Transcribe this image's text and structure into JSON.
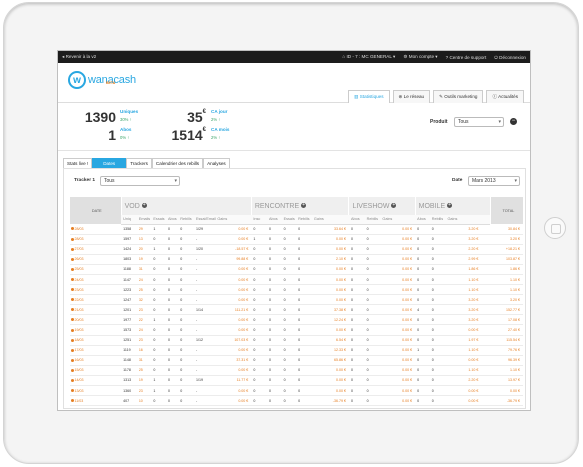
{
  "topbar": {
    "back": "Revenir à la v2",
    "user": "ID - 7 : MC GENERAL",
    "account": "Mon compte",
    "support": "Centre de support",
    "logout": "Déconnexion"
  },
  "brand": {
    "name": "wanacash",
    "badge": "BETA"
  },
  "nav": [
    "Statistiques",
    "Le réseau",
    "Outils marketing",
    "Actualités"
  ],
  "stats": {
    "uniques_value": "1390",
    "uniques_label": "Uniques",
    "uniques_pct": "30%",
    "abos_value": "1",
    "abos_label": "Abos",
    "abos_pct": "0%",
    "ca_jour_value": "35",
    "ca_jour_label": "CA jour",
    "ca_jour_pct": "2%",
    "ca_mois_value": "1514",
    "ca_mois_label": "CA mois",
    "ca_mois_pct": "2%",
    "currency": "€"
  },
  "produit": {
    "label": "Produit",
    "value": "Tous"
  },
  "subtabs": [
    "Stats live !",
    "Dates",
    "Trackers",
    "Calendrier des rebills",
    "Analyses"
  ],
  "filters": {
    "tracker_label": "Tracker 1",
    "tracker_value": "Tous",
    "date_label": "Date",
    "date_value": "Mars 2013"
  },
  "table": {
    "date_header": "DATE",
    "total_header": "TOTAL",
    "groups": [
      "VOD",
      "RENCONTRE",
      "LIVESHOW",
      "MOBILE"
    ],
    "subheaders": [
      "Uniq",
      "Emails",
      "Essais",
      "Abos",
      "Rebills",
      "Essai/Email",
      "Gains",
      "Insc",
      "Abos",
      "Essais",
      "Rebills",
      "Gains",
      "Abos",
      "Rebills",
      "Gains",
      "Abos",
      "Rebills",
      "Gains"
    ],
    "rows": [
      [
        "28/03",
        "1358",
        "29",
        "1",
        "0",
        "0",
        "1/29",
        "0.00 €",
        "0",
        "0",
        "0",
        "0",
        "33.64 €",
        "0",
        "0",
        "0.00 €",
        "0",
        "0",
        "3.20 €",
        "",
        "30.84 €"
      ],
      [
        "28/03",
        "1597",
        "13",
        "0",
        "0",
        "0",
        "-",
        "0.00 €",
        "1",
        "0",
        "0",
        "0",
        "0.00 €",
        "0",
        "0",
        "0.00 €",
        "0",
        "0",
        "3.20 €",
        "",
        "3.20 €"
      ],
      [
        "27/03",
        "1424",
        "20",
        "1",
        "0",
        "0",
        "1/20",
        "-18.57 €",
        "0",
        "0",
        "0",
        "0",
        "0.00 €",
        "0",
        "0",
        "0.00 €",
        "0",
        "0",
        "2.20 €",
        "",
        "+18.21 €"
      ],
      [
        "26/03",
        "1803",
        "19",
        "0",
        "0",
        "0",
        "-",
        "99.88 €",
        "0",
        "0",
        "0",
        "0",
        "2.10 €",
        "0",
        "0",
        "0.00 €",
        "0",
        "0",
        "2.99 €",
        "",
        "103.87 €"
      ],
      [
        "25/03",
        "1188",
        "31",
        "0",
        "0",
        "0",
        "-",
        "0.00 €",
        "0",
        "0",
        "0",
        "0",
        "0.00 €",
        "0",
        "0",
        "0.00 €",
        "0",
        "0",
        "1.86 €",
        "",
        "1.86 €"
      ],
      [
        "24/03",
        "1147",
        "24",
        "0",
        "0",
        "0",
        "-",
        "0.00 €",
        "0",
        "0",
        "0",
        "0",
        "0.00 €",
        "0",
        "0",
        "0.00 €",
        "0",
        "0",
        "1.10 €",
        "",
        "1.10 €"
      ],
      [
        "23/03",
        "1223",
        "25",
        "0",
        "0",
        "0",
        "-",
        "0.00 €",
        "0",
        "0",
        "0",
        "0",
        "0.00 €",
        "0",
        "0",
        "0.00 €",
        "0",
        "0",
        "1.10 €",
        "",
        "1.10 €"
      ],
      [
        "22/03",
        "1247",
        "32",
        "0",
        "0",
        "0",
        "-",
        "0.00 €",
        "0",
        "0",
        "0",
        "0",
        "0.00 €",
        "0",
        "0",
        "0.00 €",
        "0",
        "0",
        "3.20 €",
        "",
        "3.20 €"
      ],
      [
        "21/03",
        "1201",
        "23",
        "0",
        "0",
        "0",
        "1/14",
        "111.21 €",
        "0",
        "0",
        "0",
        "0",
        "37.38 €",
        "0",
        "0",
        "0.00 €",
        "4",
        "0",
        "3.20 €",
        "",
        "152.77 €"
      ],
      [
        "20/03",
        "1977",
        "22",
        "1",
        "0",
        "0",
        "-",
        "0.00 €",
        "0",
        "0",
        "0",
        "0",
        "12.24 €",
        "0",
        "0",
        "0.00 €",
        "0",
        "0",
        "3.20 €",
        "",
        "17.08 €"
      ],
      [
        "19/03",
        "1573",
        "24",
        "0",
        "0",
        "0",
        "-",
        "0.00 €",
        "0",
        "0",
        "0",
        "0",
        "0.00 €",
        "0",
        "0",
        "0.00 €",
        "0",
        "0",
        "0.00 €",
        "",
        "27.40 €"
      ],
      [
        "18/03",
        "1251",
        "23",
        "0",
        "0",
        "0",
        "1/12",
        "107.03 €",
        "0",
        "0",
        "0",
        "0",
        "6.54 €",
        "0",
        "0",
        "0.00 €",
        "0",
        "0",
        "1.97 €",
        "",
        "115.54 €"
      ],
      [
        "17/03",
        "1119",
        "16",
        "0",
        "0",
        "0",
        "-",
        "0.00 €",
        "0",
        "0",
        "0",
        "0",
        "12.33 €",
        "0",
        "0",
        "0.00 €",
        "1",
        "0",
        "1.10 €",
        "",
        "79.76 €"
      ],
      [
        "16/03",
        "1148",
        "31",
        "0",
        "0",
        "0",
        "-",
        "37.31 €",
        "0",
        "0",
        "0",
        "0",
        "65.86 €",
        "0",
        "0",
        "0.00 €",
        "0",
        "0",
        "0.00 €",
        "",
        "96.39 €"
      ],
      [
        "15/03",
        "1178",
        "25",
        "0",
        "0",
        "0",
        "-",
        "0.00 €",
        "0",
        "0",
        "0",
        "0",
        "0.00 €",
        "0",
        "0",
        "0.00 €",
        "0",
        "0",
        "1.10 €",
        "",
        "1.10 €"
      ],
      [
        "14/03",
        "1313",
        "19",
        "1",
        "0",
        "0",
        "1/19",
        "11.77 €",
        "0",
        "0",
        "0",
        "0",
        "0.00 €",
        "0",
        "0",
        "0.00 €",
        "0",
        "0",
        "2.20 €",
        "",
        "13.97 €"
      ],
      [
        "13/03",
        "1360",
        "23",
        "1",
        "0",
        "0",
        "-",
        "0.00 €",
        "0",
        "0",
        "0",
        "0",
        "0.00 €",
        "0",
        "0",
        "0.00 €",
        "0",
        "0",
        "0.00 €",
        "",
        "0.00 €"
      ],
      [
        "11/03",
        "407",
        "10",
        "0",
        "0",
        "0",
        "-",
        "0.00 €",
        "0",
        "0",
        "0",
        "0",
        "-36.79 €",
        "0",
        "0",
        "0.00 €",
        "0",
        "0",
        "0.00 €",
        "",
        "-36.79 €"
      ]
    ]
  },
  "icons": {
    "back": "arrow-left-icon",
    "home": "home-icon",
    "account": "gear-icon",
    "support": "question-icon",
    "logout": "power-icon",
    "stats": "chart-icon",
    "network": "network-icon",
    "tools": "wrench-icon",
    "news": "info-icon"
  },
  "colors": {
    "accent": "#29a7e1",
    "orange": "#e67e22",
    "green": "#3aa56a",
    "topbar": "#1c1c1c"
  }
}
